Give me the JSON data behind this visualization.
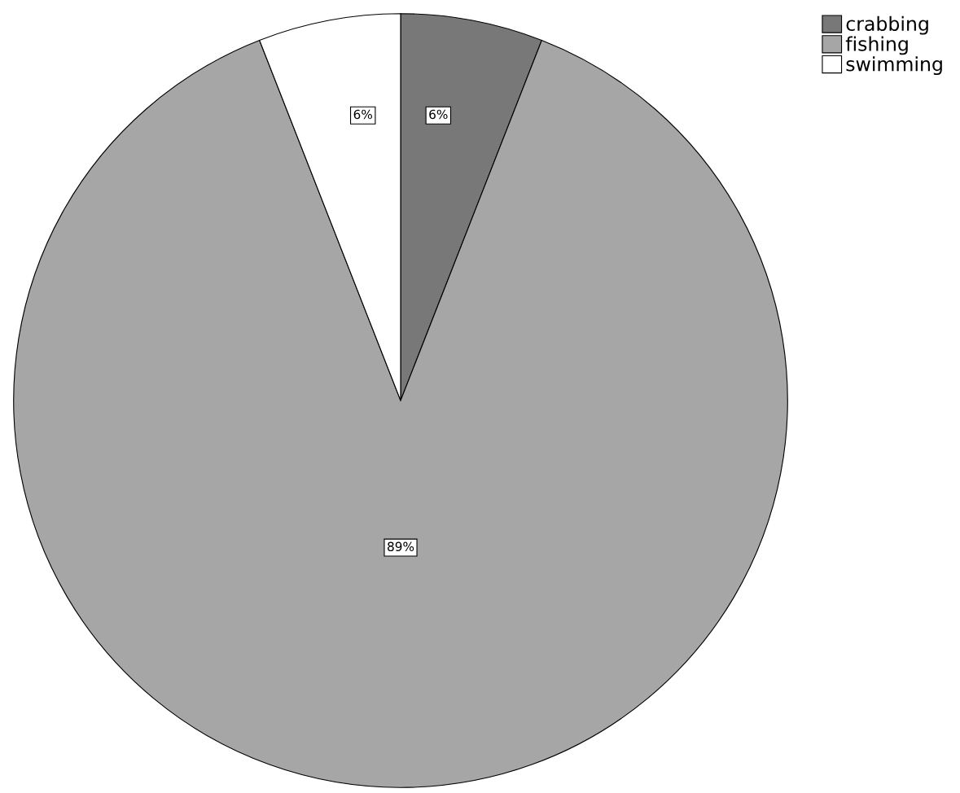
{
  "chart_data": {
    "type": "pie",
    "categories": [
      "crabbing",
      "fishing",
      "swimming"
    ],
    "values": [
      6,
      89,
      6
    ],
    "colors": [
      "#787878",
      "#a6a6a6",
      "#ffffff"
    ],
    "value_labels": [
      "6%",
      "89%",
      "6%"
    ],
    "legend": "top right"
  }
}
